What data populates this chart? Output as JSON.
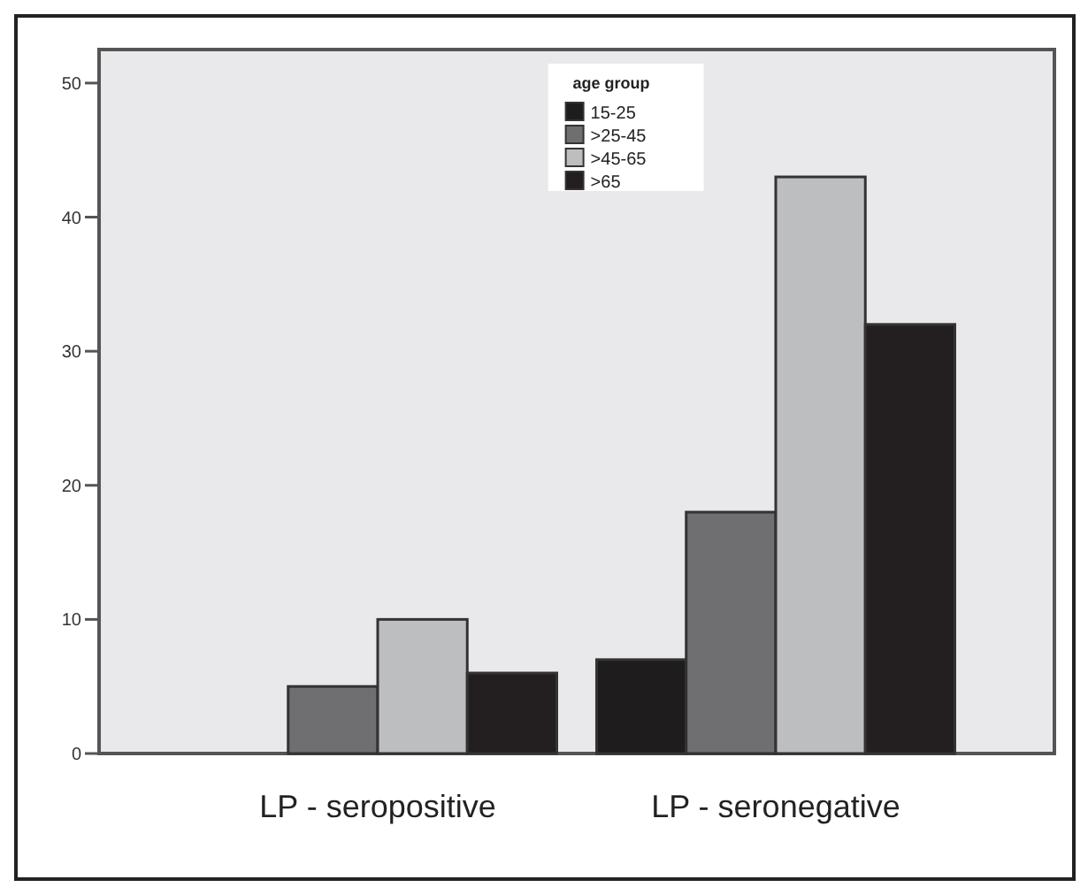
{
  "chart_data": {
    "type": "bar",
    "categories": [
      "LP - seropositive",
      "LP - seronegative"
    ],
    "legend_title": "age group",
    "legend": "top",
    "ylim": [
      0,
      52.5
    ],
    "yticks": [
      0,
      10,
      20,
      30,
      40,
      50
    ],
    "grid": false,
    "series": [
      {
        "name": "15-25",
        "color": "#1e1c1d",
        "values": [
          0,
          7
        ]
      },
      {
        "name": ">25-45",
        "color": "#6f6f71",
        "values": [
          5,
          18
        ]
      },
      {
        "name": ">45-65",
        "color": "#bdbec0",
        "values": [
          10,
          43
        ]
      },
      {
        "name": ">65",
        "color": "#231f20",
        "values": [
          6,
          32
        ]
      }
    ]
  }
}
